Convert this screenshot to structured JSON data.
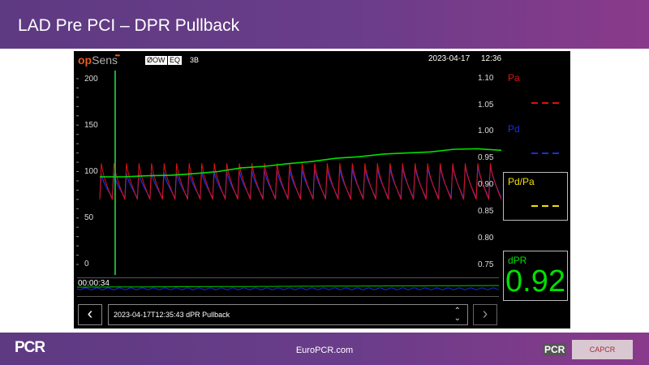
{
  "slide": {
    "title": "LAD Pre PCI – DPR Pullback"
  },
  "monitor": {
    "brand": {
      "op": "op",
      "sens": "Sens",
      "dots": "•••"
    },
    "tags": {
      "zero": "ØOW",
      "eq": "EQ",
      "code": "3B"
    },
    "date": "2023-04-17",
    "time": "12:36",
    "pressure_axis": [
      "200",
      "150",
      "100",
      "50",
      "0"
    ],
    "ratio_axis": [
      "1.10",
      "1.05",
      "1.00",
      "0.95",
      "0.90",
      "0.85",
      "0.80",
      "0.75"
    ],
    "panels": {
      "pa": {
        "label": "Pa",
        "color": "#e01010"
      },
      "pd": {
        "label": "Pd",
        "color": "#1a2ee0"
      },
      "pdpa": {
        "label": "Pd/Pa",
        "color": "#f0e000"
      },
      "dpr": {
        "label": "dPR",
        "value": "0.92",
        "color": "#00e000"
      }
    },
    "overview": {
      "time": "00:00:34"
    },
    "recording": {
      "name": "2023-04-17T12:35:43   dPR Pullback"
    },
    "nav": {
      "prev": "‹",
      "next": "›",
      "up_arrow": "⌃",
      "down_arrow": "⌄"
    }
  },
  "footer": {
    "site": "EuroPCR.com",
    "logo_left": "PCR",
    "logo_small": "PCR",
    "partner": "CAPCR"
  },
  "chart_data": {
    "type": "line",
    "title": "",
    "x_range_s": [
      0,
      34
    ],
    "left_axis": {
      "ylim": [
        0,
        200
      ],
      "ticks": [
        0,
        50,
        100,
        150,
        200
      ]
    },
    "right_axis": {
      "ylim": [
        0.75,
        1.1
      ],
      "ticks": [
        0.75,
        0.8,
        0.85,
        0.9,
        0.95,
        1.0,
        1.05,
        1.1
      ]
    },
    "series": [
      {
        "name": "Pa",
        "axis": "left",
        "beats": 32,
        "systolic_mmHg": 110,
        "diastolic_mmHg": 70
      },
      {
        "name": "Pd",
        "axis": "left",
        "beats": 32,
        "systolic_start_mmHg": 98,
        "systolic_end_mmHg": 108,
        "diastolic_mmHg": 72
      },
      {
        "name": "dPR",
        "axis": "right",
        "x": [
          0,
          2,
          4,
          6,
          8,
          10,
          12,
          14,
          16,
          18,
          20,
          22,
          24,
          26,
          28,
          30,
          32,
          34
        ],
        "y": [
          0.915,
          0.915,
          0.917,
          0.918,
          0.921,
          0.925,
          0.932,
          0.935,
          0.94,
          0.944,
          0.95,
          0.953,
          0.958,
          0.96,
          0.962,
          0.967,
          0.968,
          0.965
        ]
      }
    ],
    "cursor_x_s": 1.3,
    "grid": false,
    "legend": "right"
  }
}
